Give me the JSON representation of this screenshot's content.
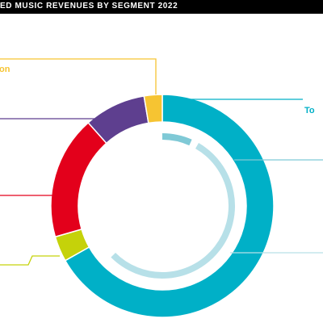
{
  "chart_data": {
    "type": "pie",
    "title": "ED MUSIC REVENUES BY SEGMENT 2022",
    "segments": [
      {
        "name": "",
        "value": 63.5,
        "color": "#00b0c7"
      },
      {
        "name": "",
        "value": 3.5,
        "color": "#c5d20a"
      },
      {
        "name": "",
        "value": 17,
        "color": "#e3001b"
      },
      {
        "name": "",
        "value": 8.5,
        "color": "#5e3f8f"
      },
      {
        "name": "on",
        "value": 2.5,
        "color": "#f6c432"
      }
    ],
    "total_label": "To",
    "inner_series": [
      {
        "name": "",
        "value": 9,
        "color": "#7fc9d6"
      },
      {
        "name": "",
        "value": 54.5,
        "color": "#b7e0e8"
      }
    ]
  }
}
